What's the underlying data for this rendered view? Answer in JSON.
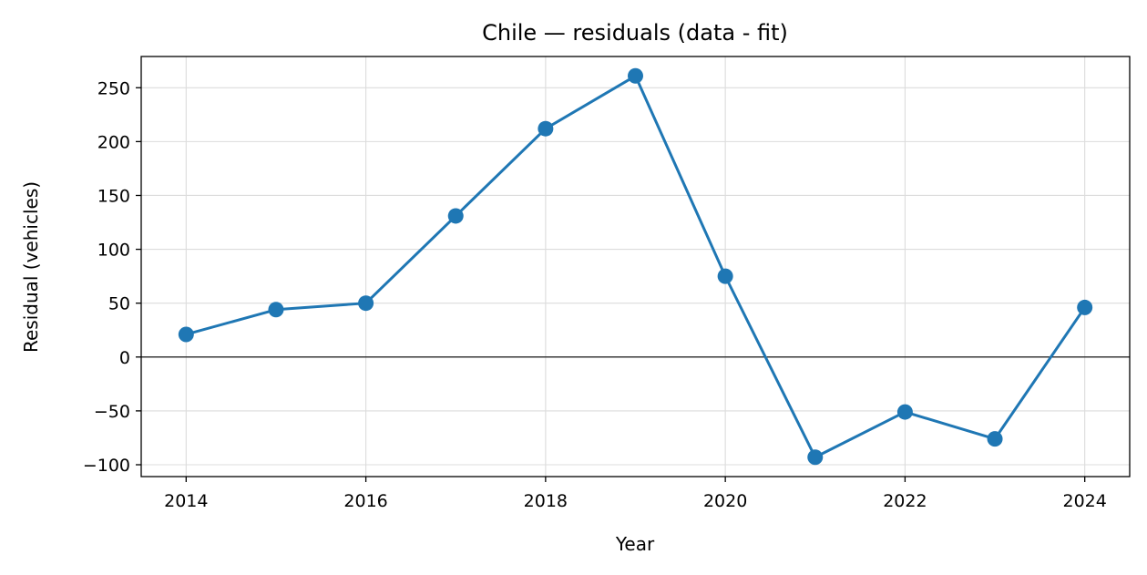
{
  "chart_data": {
    "type": "line",
    "title": "Chile — residuals (data - fit)",
    "xlabel": "Year",
    "ylabel": "Residual (vehicles)",
    "xlim": [
      2013.5,
      2024.5
    ],
    "ylim": [
      -111,
      279
    ],
    "xticks": [
      2014,
      2016,
      2018,
      2020,
      2022,
      2024
    ],
    "yticks": [
      -100,
      -50,
      0,
      50,
      100,
      150,
      200,
      250
    ],
    "ytick_labels": [
      "−100",
      "−50",
      "0",
      "50",
      "100",
      "150",
      "200",
      "250"
    ],
    "grid": true,
    "zero_line": true,
    "series": [
      {
        "color": "#1f77b4",
        "marker": "circle",
        "x": [
          2014,
          2015,
          2016,
          2017,
          2018,
          2019,
          2020,
          2021,
          2022,
          2023,
          2024
        ],
        "y": [
          21,
          44,
          50,
          131,
          212,
          261,
          75,
          -93,
          -51,
          -76,
          46
        ]
      }
    ]
  }
}
